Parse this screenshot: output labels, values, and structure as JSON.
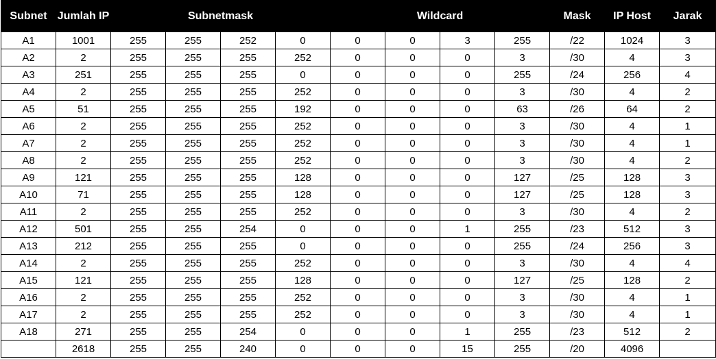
{
  "headers": {
    "subnet": "Subnet",
    "jumlah_ip": "Jumlah IP",
    "subnetmask": "Subnetmask",
    "wildcard": "Wildcard",
    "mask": "Mask",
    "ip_host": "IP Host",
    "jarak": "Jarak"
  },
  "rows": [
    [
      "A1",
      "1001",
      "255",
      "255",
      "252",
      "0",
      "0",
      "0",
      "3",
      "255",
      "/22",
      "1024",
      "3"
    ],
    [
      "A2",
      "2",
      "255",
      "255",
      "255",
      "252",
      "0",
      "0",
      "0",
      "3",
      "/30",
      "4",
      "3"
    ],
    [
      "A3",
      "251",
      "255",
      "255",
      "255",
      "0",
      "0",
      "0",
      "0",
      "255",
      "/24",
      "256",
      "4"
    ],
    [
      "A4",
      "2",
      "255",
      "255",
      "255",
      "252",
      "0",
      "0",
      "0",
      "3",
      "/30",
      "4",
      "2"
    ],
    [
      "A5",
      "51",
      "255",
      "255",
      "255",
      "192",
      "0",
      "0",
      "0",
      "63",
      "/26",
      "64",
      "2"
    ],
    [
      "A6",
      "2",
      "255",
      "255",
      "255",
      "252",
      "0",
      "0",
      "0",
      "3",
      "/30",
      "4",
      "1"
    ],
    [
      "A7",
      "2",
      "255",
      "255",
      "255",
      "252",
      "0",
      "0",
      "0",
      "3",
      "/30",
      "4",
      "1"
    ],
    [
      "A8",
      "2",
      "255",
      "255",
      "255",
      "252",
      "0",
      "0",
      "0",
      "3",
      "/30",
      "4",
      "2"
    ],
    [
      "A9",
      "121",
      "255",
      "255",
      "255",
      "128",
      "0",
      "0",
      "0",
      "127",
      "/25",
      "128",
      "3"
    ],
    [
      "A10",
      "71",
      "255",
      "255",
      "255",
      "128",
      "0",
      "0",
      "0",
      "127",
      "/25",
      "128",
      "3"
    ],
    [
      "A11",
      "2",
      "255",
      "255",
      "255",
      "252",
      "0",
      "0",
      "0",
      "3",
      "/30",
      "4",
      "2"
    ],
    [
      "A12",
      "501",
      "255",
      "255",
      "254",
      "0",
      "0",
      "0",
      "1",
      "255",
      "/23",
      "512",
      "3"
    ],
    [
      "A13",
      "212",
      "255",
      "255",
      "255",
      "0",
      "0",
      "0",
      "0",
      "255",
      "/24",
      "256",
      "3"
    ],
    [
      "A14",
      "2",
      "255",
      "255",
      "255",
      "252",
      "0",
      "0",
      "0",
      "3",
      "/30",
      "4",
      "4"
    ],
    [
      "A15",
      "121",
      "255",
      "255",
      "255",
      "128",
      "0",
      "0",
      "0",
      "127",
      "/25",
      "128",
      "2"
    ],
    [
      "A16",
      "2",
      "255",
      "255",
      "255",
      "252",
      "0",
      "0",
      "0",
      "3",
      "/30",
      "4",
      "1"
    ],
    [
      "A17",
      "2",
      "255",
      "255",
      "255",
      "252",
      "0",
      "0",
      "0",
      "3",
      "/30",
      "4",
      "1"
    ],
    [
      "A18",
      "271",
      "255",
      "255",
      "254",
      "0",
      "0",
      "0",
      "1",
      "255",
      "/23",
      "512",
      "2"
    ],
    [
      "",
      "2618",
      "255",
      "255",
      "240",
      "0",
      "0",
      "0",
      "15",
      "255",
      "/20",
      "4096",
      ""
    ]
  ],
  "colors": {
    "header_bg": "#000000",
    "header_text": "#ffffff",
    "grid": "#000000"
  }
}
